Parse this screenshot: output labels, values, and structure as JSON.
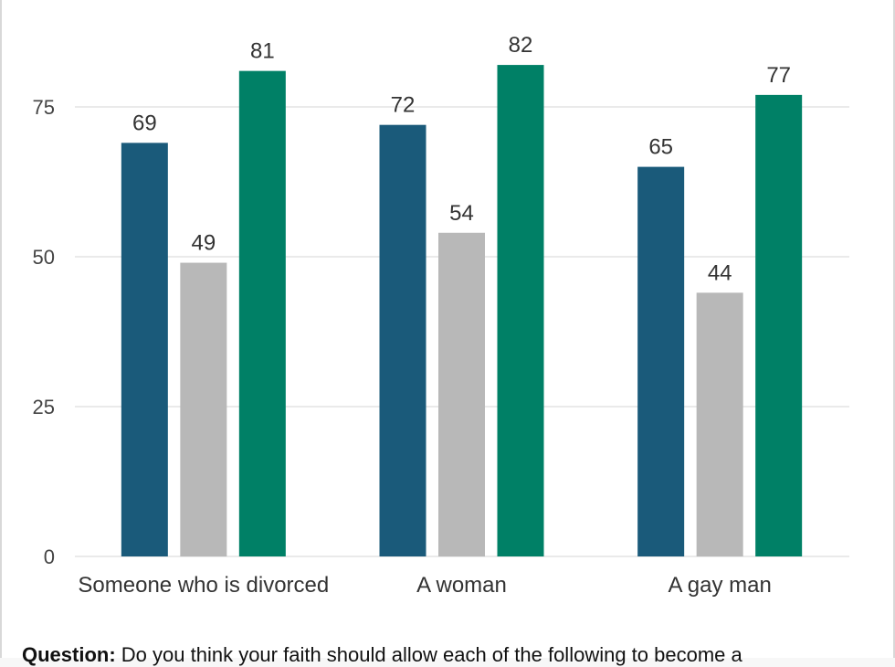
{
  "chart_data": {
    "type": "bar",
    "categories": [
      "Someone who is divorced",
      "A woman",
      "A gay man"
    ],
    "series": [
      {
        "values": [
          69,
          72,
          65
        ],
        "color": "#1a5a7a"
      },
      {
        "values": [
          49,
          54,
          44
        ],
        "color": "#b8b8b8"
      },
      {
        "values": [
          81,
          82,
          77
        ],
        "color": "#008066"
      }
    ],
    "yticks": [
      0,
      25,
      50,
      75
    ],
    "ylim": [
      0,
      90
    ],
    "grid": true,
    "gridColor": "#dddddd",
    "title": "",
    "xlabel": "",
    "ylabel": ""
  },
  "footer": {
    "question_label": "Question:",
    "question_text": "Do you think your faith should allow each of the following to become a"
  }
}
